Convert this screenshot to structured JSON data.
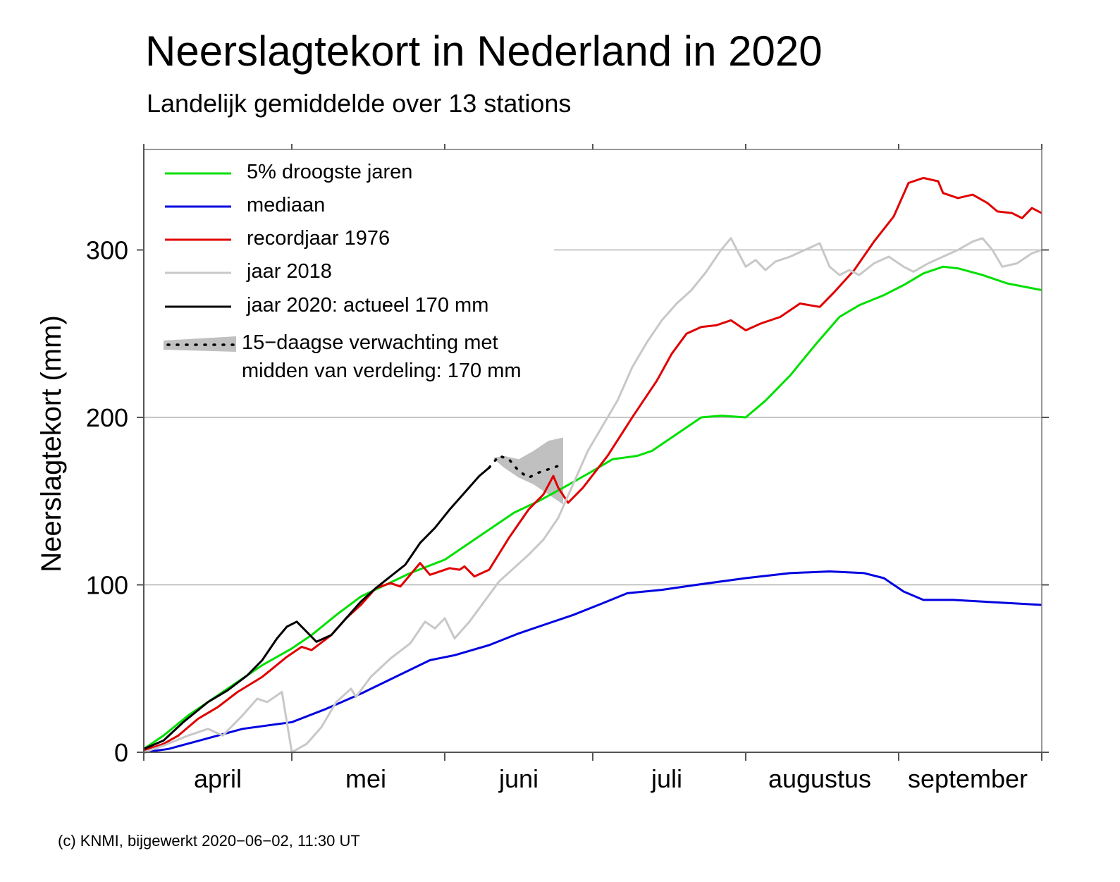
{
  "title": "Neerslagtekort in Nederland in 2020",
  "subtitle": "Landelijk gemiddelde over 13 stations",
  "credit": "(c) KNMI, bijgewerkt 2020−06−02, 11:30 UT",
  "chart_data": {
    "type": "line",
    "ylabel": "Neerslagtekort (mm)",
    "xlabel": "",
    "x_unit": "date",
    "xlim": [
      "2020-04-01",
      "2020-09-30"
    ],
    "ylim": [
      0,
      360
    ],
    "yticks": [
      0,
      100,
      200,
      300
    ],
    "month_labels": [
      {
        "label": "april",
        "date": "2020-04-16"
      },
      {
        "label": "mei",
        "date": "2020-05-16"
      },
      {
        "label": "juni",
        "date": "2020-06-16"
      },
      {
        "label": "juli",
        "date": "2020-07-16"
      },
      {
        "label": "augustus",
        "date": "2020-08-16"
      },
      {
        "label": "september",
        "date": "2020-09-15"
      }
    ],
    "month_boundaries": [
      "2020-05-01",
      "2020-06-01",
      "2020-07-01",
      "2020-08-01",
      "2020-09-01"
    ],
    "grid": {
      "horizontal": true,
      "vertical": false
    },
    "legend_position": "top-left",
    "series": [
      {
        "name": "5% droogste jaren",
        "color": "#00e000",
        "points": [
          [
            "2020-04-01",
            2
          ],
          [
            "2020-04-05",
            10
          ],
          [
            "2020-04-10",
            22
          ],
          [
            "2020-04-15",
            32
          ],
          [
            "2020-04-20",
            42
          ],
          [
            "2020-04-25",
            52
          ],
          [
            "2020-05-01",
            62
          ],
          [
            "2020-05-05",
            70
          ],
          [
            "2020-05-10",
            82
          ],
          [
            "2020-05-15",
            93
          ],
          [
            "2020-05-20",
            100
          ],
          [
            "2020-05-25",
            107
          ],
          [
            "2020-06-01",
            115
          ],
          [
            "2020-06-05",
            123
          ],
          [
            "2020-06-10",
            133
          ],
          [
            "2020-06-15",
            143
          ],
          [
            "2020-06-20",
            150
          ],
          [
            "2020-06-25",
            158
          ],
          [
            "2020-07-01",
            168
          ],
          [
            "2020-07-05",
            175
          ],
          [
            "2020-07-10",
            177
          ],
          [
            "2020-07-13",
            180
          ],
          [
            "2020-07-18",
            190
          ],
          [
            "2020-07-23",
            200
          ],
          [
            "2020-07-27",
            201
          ],
          [
            "2020-08-01",
            200
          ],
          [
            "2020-08-05",
            210
          ],
          [
            "2020-08-10",
            225
          ],
          [
            "2020-08-15",
            243
          ],
          [
            "2020-08-20",
            260
          ],
          [
            "2020-08-24",
            267
          ],
          [
            "2020-08-29",
            273
          ],
          [
            "2020-09-02",
            279
          ],
          [
            "2020-09-06",
            286
          ],
          [
            "2020-09-10",
            290
          ],
          [
            "2020-09-13",
            289
          ],
          [
            "2020-09-18",
            285
          ],
          [
            "2020-09-23",
            280
          ],
          [
            "2020-09-30",
            276
          ]
        ]
      },
      {
        "name": "mediaan",
        "color": "#0000e0",
        "points": [
          [
            "2020-04-01",
            0
          ],
          [
            "2020-04-06",
            2
          ],
          [
            "2020-04-11",
            6
          ],
          [
            "2020-04-16",
            10
          ],
          [
            "2020-04-21",
            14
          ],
          [
            "2020-05-01",
            18
          ],
          [
            "2020-05-08",
            26
          ],
          [
            "2020-05-15",
            35
          ],
          [
            "2020-05-22",
            45
          ],
          [
            "2020-05-29",
            55
          ],
          [
            "2020-06-03",
            58
          ],
          [
            "2020-06-10",
            64
          ],
          [
            "2020-06-16",
            71
          ],
          [
            "2020-06-21",
            76
          ],
          [
            "2020-06-27",
            82
          ],
          [
            "2020-07-03",
            89
          ],
          [
            "2020-07-08",
            95
          ],
          [
            "2020-07-15",
            97
          ],
          [
            "2020-07-22",
            100
          ],
          [
            "2020-08-01",
            104
          ],
          [
            "2020-08-10",
            107
          ],
          [
            "2020-08-18",
            108
          ],
          [
            "2020-08-25",
            107
          ],
          [
            "2020-08-29",
            104
          ],
          [
            "2020-09-02",
            96
          ],
          [
            "2020-09-06",
            91
          ],
          [
            "2020-09-12",
            91
          ],
          [
            "2020-09-18",
            90
          ],
          [
            "2020-09-24",
            89
          ],
          [
            "2020-09-30",
            88
          ]
        ]
      },
      {
        "name": "recordjaar 1976",
        "color": "#e00000",
        "points": [
          [
            "2020-04-01",
            1
          ],
          [
            "2020-04-05",
            5
          ],
          [
            "2020-04-08",
            10
          ],
          [
            "2020-04-12",
            20
          ],
          [
            "2020-04-16",
            27
          ],
          [
            "2020-04-20",
            36
          ],
          [
            "2020-04-25",
            45
          ],
          [
            "2020-04-30",
            57
          ],
          [
            "2020-05-03",
            63
          ],
          [
            "2020-05-05",
            61
          ],
          [
            "2020-05-09",
            70
          ],
          [
            "2020-05-12",
            80
          ],
          [
            "2020-05-15",
            88
          ],
          [
            "2020-05-18",
            98
          ],
          [
            "2020-05-21",
            101
          ],
          [
            "2020-05-23",
            99
          ],
          [
            "2020-05-27",
            113
          ],
          [
            "2020-05-29",
            106
          ],
          [
            "2020-06-02",
            110
          ],
          [
            "2020-06-04",
            109
          ],
          [
            "2020-06-05",
            111
          ],
          [
            "2020-06-07",
            105
          ],
          [
            "2020-06-10",
            109
          ],
          [
            "2020-06-14",
            128
          ],
          [
            "2020-06-18",
            145
          ],
          [
            "2020-06-21",
            154
          ],
          [
            "2020-06-23",
            165
          ],
          [
            "2020-06-24",
            158
          ],
          [
            "2020-06-26",
            149
          ],
          [
            "2020-06-29",
            158
          ],
          [
            "2020-07-04",
            177
          ],
          [
            "2020-07-09",
            200
          ],
          [
            "2020-07-14",
            222
          ],
          [
            "2020-07-17",
            238
          ],
          [
            "2020-07-20",
            250
          ],
          [
            "2020-07-23",
            254
          ],
          [
            "2020-07-26",
            255
          ],
          [
            "2020-07-29",
            258
          ],
          [
            "2020-08-01",
            252
          ],
          [
            "2020-08-04",
            256
          ],
          [
            "2020-08-08",
            260
          ],
          [
            "2020-08-12",
            268
          ],
          [
            "2020-08-16",
            266
          ],
          [
            "2020-08-19",
            275
          ],
          [
            "2020-08-23",
            288
          ],
          [
            "2020-08-27",
            305
          ],
          [
            "2020-08-31",
            320
          ],
          [
            "2020-09-03",
            340
          ],
          [
            "2020-09-06",
            343
          ],
          [
            "2020-09-09",
            341
          ],
          [
            "2020-09-10",
            334
          ],
          [
            "2020-09-13",
            331
          ],
          [
            "2020-09-16",
            333
          ],
          [
            "2020-09-19",
            328
          ],
          [
            "2020-09-21",
            323
          ],
          [
            "2020-09-24",
            322
          ],
          [
            "2020-09-26",
            319
          ],
          [
            "2020-09-28",
            325
          ],
          [
            "2020-09-30",
            322
          ]
        ]
      },
      {
        "name": "jaar 2018",
        "color": "#c8c8c8",
        "points": [
          [
            "2020-04-01",
            0
          ],
          [
            "2020-04-05",
            4
          ],
          [
            "2020-04-10",
            10
          ],
          [
            "2020-04-14",
            14
          ],
          [
            "2020-04-17",
            10
          ],
          [
            "2020-04-21",
            22
          ],
          [
            "2020-04-24",
            32
          ],
          [
            "2020-04-26",
            30
          ],
          [
            "2020-04-28",
            34
          ],
          [
            "2020-04-29",
            36
          ],
          [
            "2020-04-30",
            18
          ],
          [
            "2020-05-01",
            0
          ],
          [
            "2020-05-04",
            5
          ],
          [
            "2020-05-07",
            15
          ],
          [
            "2020-05-10",
            30
          ],
          [
            "2020-05-13",
            38
          ],
          [
            "2020-05-14",
            33
          ],
          [
            "2020-05-17",
            45
          ],
          [
            "2020-05-21",
            56
          ],
          [
            "2020-05-25",
            65
          ],
          [
            "2020-05-28",
            78
          ],
          [
            "2020-05-30",
            74
          ],
          [
            "2020-06-01",
            80
          ],
          [
            "2020-06-03",
            68
          ],
          [
            "2020-06-06",
            78
          ],
          [
            "2020-06-09",
            90
          ],
          [
            "2020-06-12",
            102
          ],
          [
            "2020-06-15",
            110
          ],
          [
            "2020-06-18",
            118
          ],
          [
            "2020-06-21",
            127
          ],
          [
            "2020-06-24",
            140
          ],
          [
            "2020-06-27",
            160
          ],
          [
            "2020-06-30",
            180
          ],
          [
            "2020-07-03",
            195
          ],
          [
            "2020-07-06",
            210
          ],
          [
            "2020-07-09",
            230
          ],
          [
            "2020-07-12",
            245
          ],
          [
            "2020-07-15",
            258
          ],
          [
            "2020-07-18",
            268
          ],
          [
            "2020-07-21",
            276
          ],
          [
            "2020-07-24",
            287
          ],
          [
            "2020-07-27",
            300
          ],
          [
            "2020-07-29",
            307
          ],
          [
            "2020-08-01",
            290
          ],
          [
            "2020-08-03",
            294
          ],
          [
            "2020-08-05",
            288
          ],
          [
            "2020-08-07",
            293
          ],
          [
            "2020-08-10",
            296
          ],
          [
            "2020-08-13",
            300
          ],
          [
            "2020-08-16",
            304
          ],
          [
            "2020-08-18",
            290
          ],
          [
            "2020-08-20",
            285
          ],
          [
            "2020-08-22",
            288
          ],
          [
            "2020-08-24",
            285
          ],
          [
            "2020-08-27",
            292
          ],
          [
            "2020-08-30",
            296
          ],
          [
            "2020-09-02",
            290
          ],
          [
            "2020-09-04",
            287
          ],
          [
            "2020-09-07",
            292
          ],
          [
            "2020-09-10",
            296
          ],
          [
            "2020-09-13",
            300
          ],
          [
            "2020-09-16",
            305
          ],
          [
            "2020-09-18",
            307
          ],
          [
            "2020-09-20",
            300
          ],
          [
            "2020-09-22",
            290
          ],
          [
            "2020-09-25",
            292
          ],
          [
            "2020-09-28",
            298
          ],
          [
            "2020-09-30",
            300
          ]
        ]
      },
      {
        "name": "jaar 2020: actueel 170 mm",
        "color": "#000000",
        "points": [
          [
            "2020-04-01",
            2
          ],
          [
            "2020-04-05",
            7
          ],
          [
            "2020-04-09",
            18
          ],
          [
            "2020-04-14",
            30
          ],
          [
            "2020-04-18",
            37
          ],
          [
            "2020-04-22",
            46
          ],
          [
            "2020-04-25",
            55
          ],
          [
            "2020-04-28",
            68
          ],
          [
            "2020-04-30",
            75
          ],
          [
            "2020-05-02",
            78
          ],
          [
            "2020-05-04",
            72
          ],
          [
            "2020-05-06",
            66
          ],
          [
            "2020-05-09",
            70
          ],
          [
            "2020-05-12",
            80
          ],
          [
            "2020-05-15",
            90
          ],
          [
            "2020-05-18",
            98
          ],
          [
            "2020-05-21",
            105
          ],
          [
            "2020-05-24",
            112
          ],
          [
            "2020-05-27",
            125
          ],
          [
            "2020-05-30",
            134
          ],
          [
            "2020-06-02",
            145
          ],
          [
            "2020-06-05",
            155
          ],
          [
            "2020-06-08",
            165
          ],
          [
            "2020-06-10",
            170
          ]
        ]
      }
    ],
    "forecast": {
      "name": "15−daagse verwachting met",
      "name_line2": "midden van verdeling: 170 mm",
      "median": [
        [
          "2020-06-10",
          170
        ],
        [
          "2020-06-12",
          177
        ],
        [
          "2020-06-14",
          175
        ],
        [
          "2020-06-16",
          168
        ],
        [
          "2020-06-18",
          164
        ],
        [
          "2020-06-20",
          167
        ],
        [
          "2020-06-22",
          169
        ],
        [
          "2020-06-24",
          171
        ],
        [
          "2020-06-25",
          171
        ]
      ],
      "upper": [
        [
          "2020-06-11",
          176
        ],
        [
          "2020-06-13",
          177
        ],
        [
          "2020-06-16",
          175
        ],
        [
          "2020-06-19",
          180
        ],
        [
          "2020-06-22",
          186
        ],
        [
          "2020-06-25",
          188
        ]
      ],
      "lower": [
        [
          "2020-06-25",
          148
        ],
        [
          "2020-06-22",
          154
        ],
        [
          "2020-06-19",
          160
        ],
        [
          "2020-06-16",
          164
        ],
        [
          "2020-06-13",
          170
        ],
        [
          "2020-06-11",
          175
        ]
      ],
      "band_color": "#c0c0c0"
    }
  }
}
